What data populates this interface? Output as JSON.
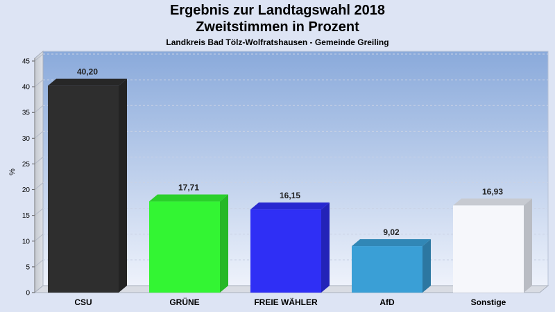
{
  "chart_data": {
    "type": "bar",
    "title": "Ergebnis zur Landtagswahl 2018",
    "subtitle": "Zweitstimmen in Prozent",
    "subtitle2": "Landkreis Bad Tölz-Wolfratshausen - Gemeinde Greiling",
    "ylabel": "%",
    "xlabel": "",
    "ylim": [
      0,
      45
    ],
    "yticks": [
      0,
      5,
      10,
      15,
      20,
      25,
      30,
      35,
      40,
      45
    ],
    "categories": [
      "CSU",
      "GRÜNE",
      "FREIE WÄHLER",
      "AfD",
      "Sonstige"
    ],
    "values": [
      40.2,
      17.71,
      16.15,
      9.02,
      16.93
    ],
    "value_labels": [
      "40,20",
      "17,71",
      "16,15",
      "9,02",
      "16,93"
    ],
    "colors": [
      "#2e2e2e",
      "#33f533",
      "#2f2ff5",
      "#3a9fd6",
      "#f6f7fb"
    ],
    "grid": true,
    "legend": "none"
  }
}
